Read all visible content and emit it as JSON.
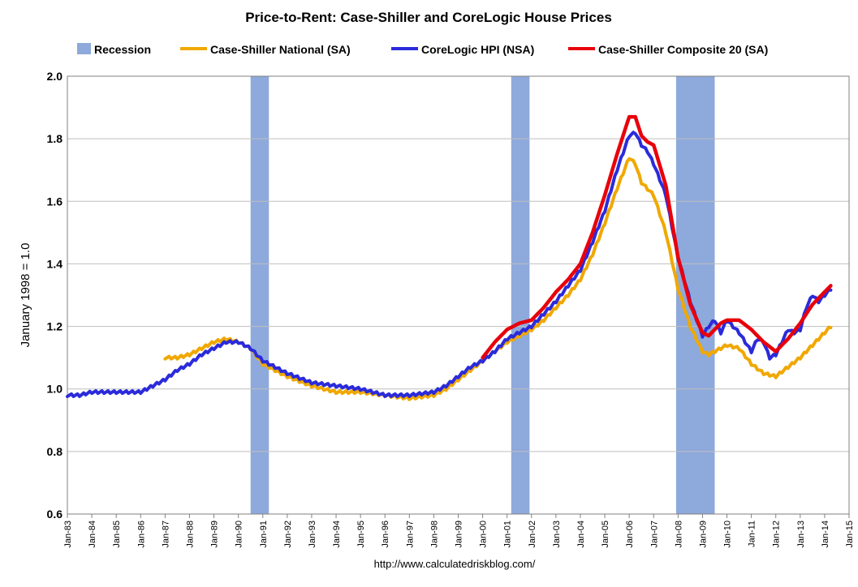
{
  "chart_data": {
    "type": "line",
    "title": "Price-to-Rent: Case-Shiller and CoreLogic House Prices",
    "ylabel": "January 1998 = 1.0",
    "source": "http://www.calculatedriskblog.com/",
    "ylim": [
      0.6,
      2.0
    ],
    "yticks": [
      "0.6",
      "0.8",
      "1.0",
      "1.2",
      "1.4",
      "1.6",
      "1.8",
      "2.0"
    ],
    "xlim": [
      1983.0,
      2015.0
    ],
    "xticks": [
      "Jan-83",
      "Jan-84",
      "Jan-85",
      "Jan-86",
      "Jan-87",
      "Jan-88",
      "Jan-89",
      "Jan-90",
      "Jan-91",
      "Jan-92",
      "Jan-93",
      "Jan-94",
      "Jan-95",
      "Jan-96",
      "Jan-97",
      "Jan-98",
      "Jan-99",
      "Jan-00",
      "Jan-01",
      "Jan-02",
      "Jan-03",
      "Jan-04",
      "Jan-05",
      "Jan-06",
      "Jan-07",
      "Jan-08",
      "Jan-09",
      "Jan-10",
      "Jan-11",
      "Jan-12",
      "Jan-13",
      "Jan-14",
      "Jan-15"
    ],
    "grid": true,
    "legend": "top",
    "recessions": [
      {
        "start": 1990.5,
        "end": 1991.25
      },
      {
        "start": 2001.17,
        "end": 2001.92
      },
      {
        "start": 2007.92,
        "end": 2009.5
      }
    ],
    "colors": {
      "recession": "#8ea9db",
      "cs_national": "#f0a800",
      "corelogic": "#2b2bdb",
      "cs_composite": "#e8000b",
      "grid": "#bfbfbf"
    },
    "legend_labels": {
      "recession": "Recession",
      "cs_national": "Case-Shiller National (SA)",
      "corelogic": "CoreLogic HPI (NSA)",
      "cs_composite": "Case-Shiller Composite 20 (SA)"
    },
    "series": [
      {
        "name": "Case-Shiller National (SA)",
        "key": "cs_national",
        "x": [
          1987.0,
          1987.5,
          1988.0,
          1988.5,
          1989.0,
          1989.5,
          1990.0,
          1990.5,
          1991.0,
          1991.5,
          1992.0,
          1993.0,
          1994.0,
          1995.0,
          1996.0,
          1997.0,
          1998.0,
          1998.5,
          1999.0,
          1999.5,
          2000.0,
          2000.5,
          2001.0,
          2001.5,
          2002.0,
          2002.5,
          2003.0,
          2003.5,
          2004.0,
          2004.5,
          2005.0,
          2005.5,
          2006.0,
          2006.25,
          2006.5,
          2006.75,
          2007.0,
          2007.5,
          2008.0,
          2008.5,
          2009.0,
          2009.25,
          2009.5,
          2009.75,
          2010.0,
          2010.5,
          2011.0,
          2011.5,
          2012.0,
          2012.5,
          2013.0,
          2013.5,
          2014.0,
          2014.25
        ],
        "y": [
          1.1,
          1.1,
          1.11,
          1.13,
          1.15,
          1.16,
          1.15,
          1.13,
          1.08,
          1.06,
          1.04,
          1.01,
          0.99,
          0.99,
          0.98,
          0.97,
          0.98,
          1.0,
          1.03,
          1.06,
          1.09,
          1.12,
          1.15,
          1.17,
          1.19,
          1.22,
          1.26,
          1.3,
          1.35,
          1.43,
          1.53,
          1.64,
          1.74,
          1.72,
          1.66,
          1.64,
          1.62,
          1.5,
          1.32,
          1.2,
          1.12,
          1.11,
          1.12,
          1.13,
          1.14,
          1.13,
          1.08,
          1.05,
          1.04,
          1.07,
          1.1,
          1.14,
          1.18,
          1.2
        ]
      },
      {
        "name": "CoreLogic HPI (NSA)",
        "key": "corelogic",
        "x": [
          1983.0,
          1983.5,
          1984.0,
          1984.5,
          1985.0,
          1985.5,
          1986.0,
          1986.5,
          1987.0,
          1987.5,
          1988.0,
          1988.5,
          1989.0,
          1989.5,
          1990.0,
          1990.5,
          1991.0,
          1991.5,
          1992.0,
          1993.0,
          1994.0,
          1995.0,
          1996.0,
          1997.0,
          1998.0,
          1998.5,
          1999.0,
          1999.5,
          2000.0,
          2000.5,
          2001.0,
          2001.5,
          2002.0,
          2002.5,
          2003.0,
          2003.5,
          2004.0,
          2004.5,
          2005.0,
          2005.5,
          2006.0,
          2006.25,
          2006.5,
          2006.75,
          2007.0,
          2007.5,
          2008.0,
          2008.5,
          2009.0,
          2009.25,
          2009.5,
          2009.75,
          2010.0,
          2010.25,
          2010.5,
          2010.75,
          2011.0,
          2011.25,
          2011.5,
          2011.75,
          2012.0,
          2012.25,
          2012.5,
          2012.75,
          2013.0,
          2013.25,
          2013.5,
          2013.75,
          2014.0,
          2014.25
        ],
        "y": [
          0.98,
          0.98,
          0.99,
          0.99,
          0.99,
          0.99,
          0.99,
          1.01,
          1.03,
          1.06,
          1.08,
          1.11,
          1.13,
          1.15,
          1.15,
          1.13,
          1.09,
          1.07,
          1.05,
          1.02,
          1.01,
          1.0,
          0.98,
          0.98,
          0.99,
          1.01,
          1.04,
          1.07,
          1.09,
          1.12,
          1.16,
          1.18,
          1.2,
          1.24,
          1.28,
          1.33,
          1.38,
          1.47,
          1.57,
          1.7,
          1.81,
          1.82,
          1.78,
          1.76,
          1.72,
          1.62,
          1.42,
          1.28,
          1.17,
          1.2,
          1.22,
          1.18,
          1.22,
          1.2,
          1.18,
          1.15,
          1.12,
          1.16,
          1.15,
          1.1,
          1.11,
          1.15,
          1.19,
          1.18,
          1.19,
          1.26,
          1.3,
          1.28,
          1.3,
          1.32
        ]
      },
      {
        "name": "Case-Shiller Composite 20 (SA)",
        "key": "cs_composite",
        "x": [
          2000.0,
          2000.5,
          2001.0,
          2001.5,
          2002.0,
          2002.5,
          2003.0,
          2003.5,
          2004.0,
          2004.5,
          2005.0,
          2005.5,
          2006.0,
          2006.25,
          2006.5,
          2006.75,
          2007.0,
          2007.5,
          2008.0,
          2008.5,
          2009.0,
          2009.25,
          2009.5,
          2009.75,
          2010.0,
          2010.5,
          2011.0,
          2011.5,
          2012.0,
          2012.5,
          2013.0,
          2013.5,
          2014.0,
          2014.25
        ],
        "y": [
          1.1,
          1.15,
          1.19,
          1.21,
          1.22,
          1.26,
          1.31,
          1.35,
          1.4,
          1.5,
          1.62,
          1.75,
          1.87,
          1.87,
          1.81,
          1.79,
          1.78,
          1.65,
          1.42,
          1.27,
          1.18,
          1.17,
          1.19,
          1.21,
          1.22,
          1.22,
          1.19,
          1.15,
          1.12,
          1.16,
          1.21,
          1.27,
          1.31,
          1.33
        ]
      }
    ]
  }
}
